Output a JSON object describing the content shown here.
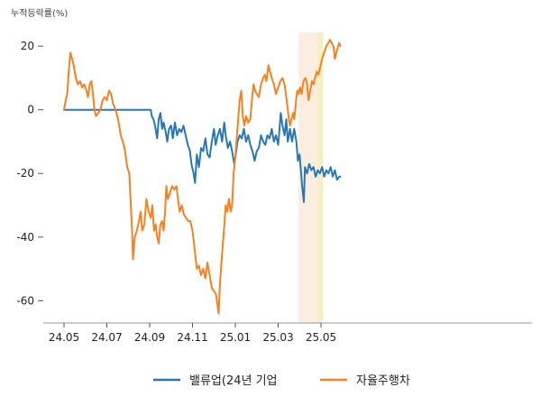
{
  "chart_data": {
    "type": "line",
    "ylabel": "누적등락률(%)",
    "ylim": [
      -67,
      26
    ],
    "y_ticks": [
      20,
      0,
      -20,
      -40,
      -60
    ],
    "x_ticks": [
      {
        "label": "24.05",
        "t": 0
      },
      {
        "label": "24.07",
        "t": 2
      },
      {
        "label": "24.09",
        "t": 4
      },
      {
        "label": "24.11",
        "t": 6
      },
      {
        "label": "25.01",
        "t": 8
      },
      {
        "label": "25.03",
        "t": 10
      },
      {
        "label": "25.05",
        "t": 12
      }
    ],
    "highlight_bands": [
      {
        "t0": 10.95,
        "t1": 11.8,
        "color": "#fbeee0"
      },
      {
        "t0": 11.8,
        "t1": 12.1,
        "color": "#f6efc6"
      }
    ],
    "legend_position": "bottom",
    "series": [
      {
        "name": "밸류업(24년 기업",
        "color": "#2878b5",
        "points": [
          [
            0.0,
            0
          ],
          [
            4.05,
            0
          ],
          [
            4.1,
            -2
          ],
          [
            4.18,
            -3
          ],
          [
            4.25,
            -5
          ],
          [
            4.35,
            -9
          ],
          [
            4.42,
            -3
          ],
          [
            4.5,
            -1
          ],
          [
            4.58,
            -6
          ],
          [
            4.65,
            -4
          ],
          [
            4.75,
            -7
          ],
          [
            4.82,
            -10
          ],
          [
            4.9,
            -6
          ],
          [
            5.0,
            -5
          ],
          [
            5.08,
            -9
          ],
          [
            5.18,
            -4
          ],
          [
            5.28,
            -8
          ],
          [
            5.38,
            -6
          ],
          [
            5.48,
            -7
          ],
          [
            5.58,
            -5
          ],
          [
            5.68,
            -8
          ],
          [
            5.78,
            -11
          ],
          [
            5.88,
            -13
          ],
          [
            5.95,
            -17
          ],
          [
            6.05,
            -20
          ],
          [
            6.12,
            -23
          ],
          [
            6.2,
            -14
          ],
          [
            6.3,
            -18
          ],
          [
            6.4,
            -12
          ],
          [
            6.5,
            -13
          ],
          [
            6.6,
            -9
          ],
          [
            6.7,
            -14
          ],
          [
            6.8,
            -15
          ],
          [
            6.9,
            -10
          ],
          [
            7.0,
            -6
          ],
          [
            7.08,
            -11
          ],
          [
            7.18,
            -8
          ],
          [
            7.28,
            -6
          ],
          [
            7.38,
            -10
          ],
          [
            7.48,
            -4
          ],
          [
            7.55,
            -8
          ],
          [
            7.65,
            -12
          ],
          [
            7.75,
            -10
          ],
          [
            7.85,
            -13
          ],
          [
            7.95,
            -17
          ],
          [
            8.02,
            -14
          ],
          [
            8.1,
            -10
          ],
          [
            8.2,
            -8
          ],
          [
            8.3,
            -9
          ],
          [
            8.4,
            -6
          ],
          [
            8.5,
            -10
          ],
          [
            8.6,
            -8
          ],
          [
            8.7,
            -11
          ],
          [
            8.8,
            -13
          ],
          [
            8.9,
            -16
          ],
          [
            9.0,
            -13
          ],
          [
            9.1,
            -12
          ],
          [
            9.2,
            -8
          ],
          [
            9.3,
            -10
          ],
          [
            9.4,
            -11
          ],
          [
            9.5,
            -8
          ],
          [
            9.6,
            -9
          ],
          [
            9.7,
            -6
          ],
          [
            9.8,
            -10
          ],
          [
            9.9,
            -8
          ],
          [
            10.0,
            -11
          ],
          [
            10.05,
            -7
          ],
          [
            10.12,
            -1
          ],
          [
            10.2,
            -5
          ],
          [
            10.3,
            -8
          ],
          [
            10.38,
            -3
          ],
          [
            10.45,
            -10
          ],
          [
            10.55,
            -6
          ],
          [
            10.65,
            -10
          ],
          [
            10.75,
            -6
          ],
          [
            10.85,
            -10
          ],
          [
            10.92,
            -16
          ],
          [
            11.0,
            -14
          ],
          [
            11.05,
            -18
          ],
          [
            11.12,
            -24
          ],
          [
            11.2,
            -29
          ],
          [
            11.25,
            -18
          ],
          [
            11.35,
            -20
          ],
          [
            11.45,
            -17
          ],
          [
            11.55,
            -19
          ],
          [
            11.65,
            -18
          ],
          [
            11.75,
            -21
          ],
          [
            11.85,
            -19
          ],
          [
            11.95,
            -20
          ],
          [
            12.05,
            -18
          ],
          [
            12.15,
            -21
          ],
          [
            12.25,
            -19
          ],
          [
            12.35,
            -20
          ],
          [
            12.45,
            -18
          ],
          [
            12.55,
            -21
          ],
          [
            12.65,
            -19
          ],
          [
            12.75,
            -22
          ],
          [
            12.85,
            -21
          ],
          [
            12.9,
            -21
          ]
        ]
      },
      {
        "name": "자율주행차",
        "color": "#f5821f",
        "points": [
          [
            0.0,
            0
          ],
          [
            0.08,
            3
          ],
          [
            0.15,
            5
          ],
          [
            0.22,
            12
          ],
          [
            0.3,
            18
          ],
          [
            0.38,
            16
          ],
          [
            0.45,
            14
          ],
          [
            0.55,
            10
          ],
          [
            0.65,
            8
          ],
          [
            0.75,
            9
          ],
          [
            0.85,
            7
          ],
          [
            0.95,
            8
          ],
          [
            1.05,
            6
          ],
          [
            1.12,
            4
          ],
          [
            1.2,
            8
          ],
          [
            1.28,
            9
          ],
          [
            1.35,
            5
          ],
          [
            1.42,
            0
          ],
          [
            1.5,
            -2
          ],
          [
            1.6,
            -1
          ],
          [
            1.7,
            0
          ],
          [
            1.8,
            3
          ],
          [
            1.9,
            4
          ],
          [
            2.0,
            3
          ],
          [
            2.1,
            6
          ],
          [
            2.2,
            5
          ],
          [
            2.28,
            2
          ],
          [
            2.35,
            1
          ],
          [
            2.45,
            -1
          ],
          [
            2.55,
            -4
          ],
          [
            2.65,
            -8
          ],
          [
            2.75,
            -10
          ],
          [
            2.85,
            -13
          ],
          [
            2.95,
            -18
          ],
          [
            3.05,
            -20
          ],
          [
            3.12,
            -30
          ],
          [
            3.18,
            -38
          ],
          [
            3.22,
            -47
          ],
          [
            3.3,
            -40
          ],
          [
            3.4,
            -38
          ],
          [
            3.5,
            -35
          ],
          [
            3.58,
            -32
          ],
          [
            3.65,
            -38
          ],
          [
            3.75,
            -36
          ],
          [
            3.85,
            -28
          ],
          [
            3.95,
            -32
          ],
          [
            4.05,
            -34
          ],
          [
            4.12,
            -30
          ],
          [
            4.2,
            -38
          ],
          [
            4.28,
            -36
          ],
          [
            4.35,
            -40
          ],
          [
            4.42,
            -42
          ],
          [
            4.5,
            -36
          ],
          [
            4.58,
            -35
          ],
          [
            4.65,
            -38
          ],
          [
            4.72,
            -32
          ],
          [
            4.78,
            -24
          ],
          [
            4.85,
            -28
          ],
          [
            4.95,
            -26
          ],
          [
            5.05,
            -24
          ],
          [
            5.15,
            -25
          ],
          [
            5.25,
            -24
          ],
          [
            5.32,
            -28
          ],
          [
            5.4,
            -32
          ],
          [
            5.5,
            -30
          ],
          [
            5.6,
            -33
          ],
          [
            5.7,
            -34
          ],
          [
            5.8,
            -35
          ],
          [
            5.9,
            -35
          ],
          [
            6.0,
            -38
          ],
          [
            6.1,
            -44
          ],
          [
            6.2,
            -50
          ],
          [
            6.3,
            -49
          ],
          [
            6.4,
            -52
          ],
          [
            6.5,
            -50
          ],
          [
            6.6,
            -53
          ],
          [
            6.7,
            -48
          ],
          [
            6.8,
            -52
          ],
          [
            6.9,
            -56
          ],
          [
            7.0,
            -57
          ],
          [
            7.1,
            -58
          ],
          [
            7.18,
            -62
          ],
          [
            7.22,
            -64
          ],
          [
            7.28,
            -55
          ],
          [
            7.35,
            -48
          ],
          [
            7.42,
            -42
          ],
          [
            7.5,
            -35
          ],
          [
            7.55,
            -30
          ],
          [
            7.62,
            -32
          ],
          [
            7.7,
            -28
          ],
          [
            7.78,
            -32
          ],
          [
            7.85,
            -30
          ],
          [
            7.92,
            -20
          ],
          [
            8.0,
            -15
          ],
          [
            8.05,
            -10
          ],
          [
            8.12,
            -4
          ],
          [
            8.2,
            3
          ],
          [
            8.28,
            6
          ],
          [
            8.35,
            -2
          ],
          [
            8.42,
            -5
          ],
          [
            8.5,
            -2
          ],
          [
            8.6,
            -4
          ],
          [
            8.7,
            -3
          ],
          [
            8.8,
            5
          ],
          [
            8.85,
            8
          ],
          [
            8.92,
            6
          ],
          [
            9.0,
            5
          ],
          [
            9.1,
            4
          ],
          [
            9.2,
            8
          ],
          [
            9.3,
            10
          ],
          [
            9.38,
            11
          ],
          [
            9.45,
            9
          ],
          [
            9.55,
            14
          ],
          [
            9.62,
            12
          ],
          [
            9.7,
            10
          ],
          [
            9.8,
            8
          ],
          [
            9.9,
            5
          ],
          [
            10.0,
            7
          ],
          [
            10.1,
            9
          ],
          [
            10.2,
            10
          ],
          [
            10.3,
            8
          ],
          [
            10.38,
            4
          ],
          [
            10.45,
            0
          ],
          [
            10.5,
            -3
          ],
          [
            10.55,
            -5
          ],
          [
            10.62,
            -3
          ],
          [
            10.7,
            -1
          ],
          [
            10.75,
            -3
          ],
          [
            10.8,
            0
          ],
          [
            10.85,
            4
          ],
          [
            10.9,
            6
          ],
          [
            10.95,
            5
          ],
          [
            11.02,
            7
          ],
          [
            11.1,
            5
          ],
          [
            11.18,
            9
          ],
          [
            11.28,
            10
          ],
          [
            11.35,
            8
          ],
          [
            11.42,
            3
          ],
          [
            11.5,
            6
          ],
          [
            11.58,
            9
          ],
          [
            11.65,
            8
          ],
          [
            11.72,
            10
          ],
          [
            11.8,
            12
          ],
          [
            11.88,
            11
          ],
          [
            11.95,
            13
          ],
          [
            12.05,
            16
          ],
          [
            12.15,
            18
          ],
          [
            12.25,
            20
          ],
          [
            12.35,
            21
          ],
          [
            12.42,
            22
          ],
          [
            12.5,
            21
          ],
          [
            12.58,
            20
          ],
          [
            12.65,
            16
          ],
          [
            12.72,
            18
          ],
          [
            12.8,
            20
          ],
          [
            12.85,
            21
          ],
          [
            12.9,
            20
          ]
        ]
      }
    ]
  }
}
